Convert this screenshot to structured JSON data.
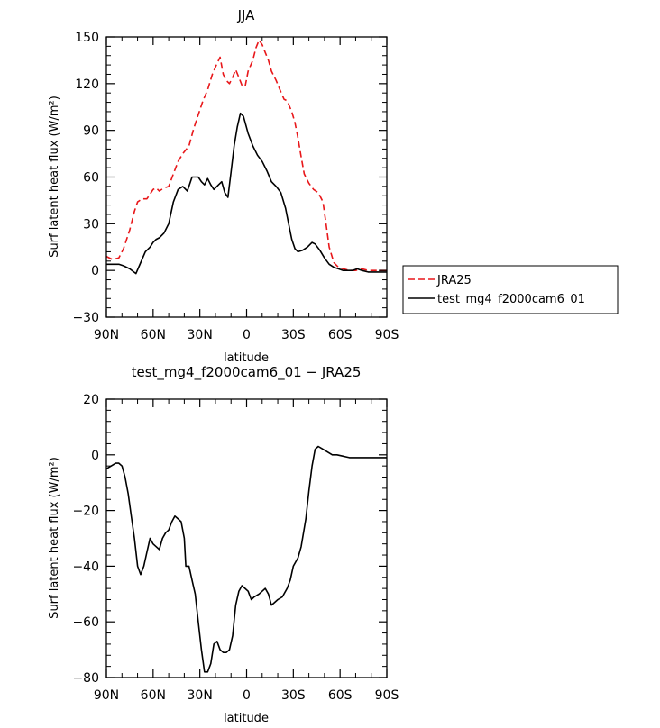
{
  "chart_data": [
    {
      "type": "line",
      "title": "JJA",
      "xlabel": "latitude",
      "ylabel": "Surf latent heat flux (W/m²)",
      "xlim": [
        90,
        -90
      ],
      "ylim": [
        -30,
        150
      ],
      "x_tick_values": [
        90,
        60,
        30,
        0,
        -30,
        -60,
        -90
      ],
      "x_tick_labels": [
        "90N",
        "60N",
        "30N",
        "0",
        "30S",
        "60S",
        "90S"
      ],
      "y_tick_values": [
        -30,
        0,
        30,
        60,
        90,
        120,
        150
      ],
      "y_tick_labels": [
        "−30",
        "0",
        "30",
        "60",
        "90",
        "120",
        "150"
      ],
      "legend_position": "right",
      "series": [
        {
          "name": "JRA25",
          "color": "#e8171a",
          "dash": "dashed",
          "points": [
            [
              90,
              9
            ],
            [
              86,
              7
            ],
            [
              82,
              8
            ],
            [
              79,
              14
            ],
            [
              75,
              26
            ],
            [
              72,
              38
            ],
            [
              70,
              44
            ],
            [
              67,
              46
            ],
            [
              64,
              46
            ],
            [
              62,
              49
            ],
            [
              60,
              52
            ],
            [
              58,
              53
            ],
            [
              56,
              51
            ],
            [
              53,
              53
            ],
            [
              50,
              54
            ],
            [
              47,
              62
            ],
            [
              44,
              70
            ],
            [
              41,
              75
            ],
            [
              37,
              80
            ],
            [
              34,
              91
            ],
            [
              31,
              100
            ],
            [
              28,
              109
            ],
            [
              25,
              116
            ],
            [
              22,
              126
            ],
            [
              19,
              133
            ],
            [
              17,
              137
            ],
            [
              15,
              126
            ],
            [
              13,
              122
            ],
            [
              11,
              120
            ],
            [
              9,
              124
            ],
            [
              7,
              129
            ],
            [
              5,
              124
            ],
            [
              3,
              119
            ],
            [
              1,
              118
            ],
            [
              -1,
              128
            ],
            [
              -4,
              135
            ],
            [
              -6,
              143
            ],
            [
              -8,
              148
            ],
            [
              -10,
              145
            ],
            [
              -12,
              140
            ],
            [
              -14,
              135
            ],
            [
              -16,
              128
            ],
            [
              -19,
              122
            ],
            [
              -21,
              117
            ],
            [
              -24,
              110
            ],
            [
              -26,
              109
            ],
            [
              -29,
              102
            ],
            [
              -31,
              95
            ],
            [
              -33,
              85
            ],
            [
              -35,
              73
            ],
            [
              -37,
              62
            ],
            [
              -40,
              56
            ],
            [
              -43,
              52
            ],
            [
              -46,
              50
            ],
            [
              -49,
              44
            ],
            [
              -51,
              30
            ],
            [
              -53,
              15
            ],
            [
              -56,
              5
            ],
            [
              -59,
              2
            ],
            [
              -62,
              1
            ],
            [
              -66,
              0
            ],
            [
              -70,
              0
            ],
            [
              -74,
              1
            ],
            [
              -78,
              0
            ],
            [
              -82,
              0
            ],
            [
              -86,
              0
            ],
            [
              -90,
              0
            ]
          ]
        },
        {
          "name": "test_mg4_f2000cam6_01",
          "color": "#000000",
          "dash": "solid",
          "points": [
            [
              90,
              4
            ],
            [
              86,
              4
            ],
            [
              82,
              4
            ],
            [
              79,
              3
            ],
            [
              75,
              1
            ],
            [
              71,
              -2
            ],
            [
              68,
              5
            ],
            [
              65,
              12
            ],
            [
              62,
              15
            ],
            [
              60,
              18
            ],
            [
              58,
              20
            ],
            [
              56,
              21
            ],
            [
              53,
              24
            ],
            [
              50,
              30
            ],
            [
              47,
              44
            ],
            [
              44,
              52
            ],
            [
              41,
              54
            ],
            [
              38,
              51
            ],
            [
              35,
              60
            ],
            [
              31,
              60
            ],
            [
              29,
              57
            ],
            [
              27,
              55
            ],
            [
              25,
              59
            ],
            [
              23,
              55
            ],
            [
              21,
              52
            ],
            [
              18,
              55
            ],
            [
              16,
              57
            ],
            [
              14,
              50
            ],
            [
              12,
              47
            ],
            [
              10,
              63
            ],
            [
              8,
              80
            ],
            [
              6,
              92
            ],
            [
              4,
              101
            ],
            [
              2,
              99
            ],
            [
              -1,
              88
            ],
            [
              -4,
              80
            ],
            [
              -7,
              74
            ],
            [
              -10,
              70
            ],
            [
              -13,
              64
            ],
            [
              -16,
              57
            ],
            [
              -19,
              54
            ],
            [
              -22,
              50
            ],
            [
              -25,
              40
            ],
            [
              -27,
              30
            ],
            [
              -29,
              20
            ],
            [
              -31,
              14
            ],
            [
              -33,
              12
            ],
            [
              -36,
              13
            ],
            [
              -39,
              15
            ],
            [
              -42,
              18
            ],
            [
              -44,
              17
            ],
            [
              -47,
              13
            ],
            [
              -50,
              8
            ],
            [
              -53,
              4
            ],
            [
              -56,
              2
            ],
            [
              -59,
              1
            ],
            [
              -62,
              0
            ],
            [
              -65,
              0
            ],
            [
              -68,
              0
            ],
            [
              -71,
              1
            ],
            [
              -74,
              0
            ],
            [
              -78,
              -1
            ],
            [
              -82,
              -1
            ],
            [
              -86,
              -1
            ],
            [
              -90,
              -1
            ]
          ]
        }
      ]
    },
    {
      "type": "line",
      "title": "test_mg4_f2000cam6_01 − JRA25",
      "xlabel": "latitude",
      "ylabel": "Surf latent heat flux (W/m²)",
      "xlim": [
        90,
        -90
      ],
      "ylim": [
        -80,
        20
      ],
      "x_tick_values": [
        90,
        60,
        30,
        0,
        -30,
        -60,
        -90
      ],
      "x_tick_labels": [
        "90N",
        "60N",
        "30N",
        "0",
        "30S",
        "60S",
        "90S"
      ],
      "y_tick_values": [
        -80,
        -60,
        -40,
        -20,
        0,
        20
      ],
      "y_tick_labels": [
        "−80",
        "−60",
        "−40",
        "−20",
        "0",
        "20"
      ],
      "series": [
        {
          "color": "#000000",
          "dash": "solid",
          "points": [
            [
              90,
              -5
            ],
            [
              87,
              -4
            ],
            [
              84,
              -3
            ],
            [
              82,
              -3
            ],
            [
              80,
              -4
            ],
            [
              78,
              -8
            ],
            [
              76,
              -14
            ],
            [
              74,
              -22
            ],
            [
              72,
              -30
            ],
            [
              70,
              -40
            ],
            [
              68,
              -43
            ],
            [
              66,
              -40
            ],
            [
              64,
              -35
            ],
            [
              62,
              -30
            ],
            [
              60,
              -32
            ],
            [
              58,
              -33
            ],
            [
              56,
              -34
            ],
            [
              54,
              -30
            ],
            [
              52,
              -28
            ],
            [
              50,
              -27
            ],
            [
              48,
              -24
            ],
            [
              46,
              -22
            ],
            [
              44,
              -23
            ],
            [
              42,
              -24
            ],
            [
              40,
              -30
            ],
            [
              39,
              -40
            ],
            [
              37,
              -40
            ],
            [
              35,
              -45
            ],
            [
              33,
              -50
            ],
            [
              31,
              -60
            ],
            [
              29,
              -70
            ],
            [
              27,
              -78
            ],
            [
              25,
              -78
            ],
            [
              23,
              -75
            ],
            [
              21,
              -68
            ],
            [
              19,
              -67
            ],
            [
              17,
              -70
            ],
            [
              15,
              -71
            ],
            [
              13,
              -71
            ],
            [
              11,
              -70
            ],
            [
              9,
              -65
            ],
            [
              7,
              -54
            ],
            [
              5,
              -49
            ],
            [
              3,
              -47
            ],
            [
              1,
              -48
            ],
            [
              -1,
              -49
            ],
            [
              -3,
              -52
            ],
            [
              -5,
              -51
            ],
            [
              -8,
              -50
            ],
            [
              -10,
              -49
            ],
            [
              -12,
              -48
            ],
            [
              -14,
              -50
            ],
            [
              -16,
              -54
            ],
            [
              -18,
              -53
            ],
            [
              -20,
              -52
            ],
            [
              -23,
              -51
            ],
            [
              -26,
              -48
            ],
            [
              -28,
              -45
            ],
            [
              -30,
              -40
            ],
            [
              -33,
              -37
            ],
            [
              -35,
              -33
            ],
            [
              -38,
              -23
            ],
            [
              -40,
              -13
            ],
            [
              -42,
              -4
            ],
            [
              -44,
              2
            ],
            [
              -46,
              3
            ],
            [
              -49,
              2
            ],
            [
              -52,
              1
            ],
            [
              -55,
              0
            ],
            [
              -58,
              0
            ],
            [
              -62,
              -0.5
            ],
            [
              -66,
              -1
            ],
            [
              -70,
              -1
            ],
            [
              -74,
              -1
            ],
            [
              -78,
              -1
            ],
            [
              -82,
              -1
            ],
            [
              -86,
              -1
            ],
            [
              -90,
              -1
            ]
          ]
        }
      ]
    }
  ]
}
